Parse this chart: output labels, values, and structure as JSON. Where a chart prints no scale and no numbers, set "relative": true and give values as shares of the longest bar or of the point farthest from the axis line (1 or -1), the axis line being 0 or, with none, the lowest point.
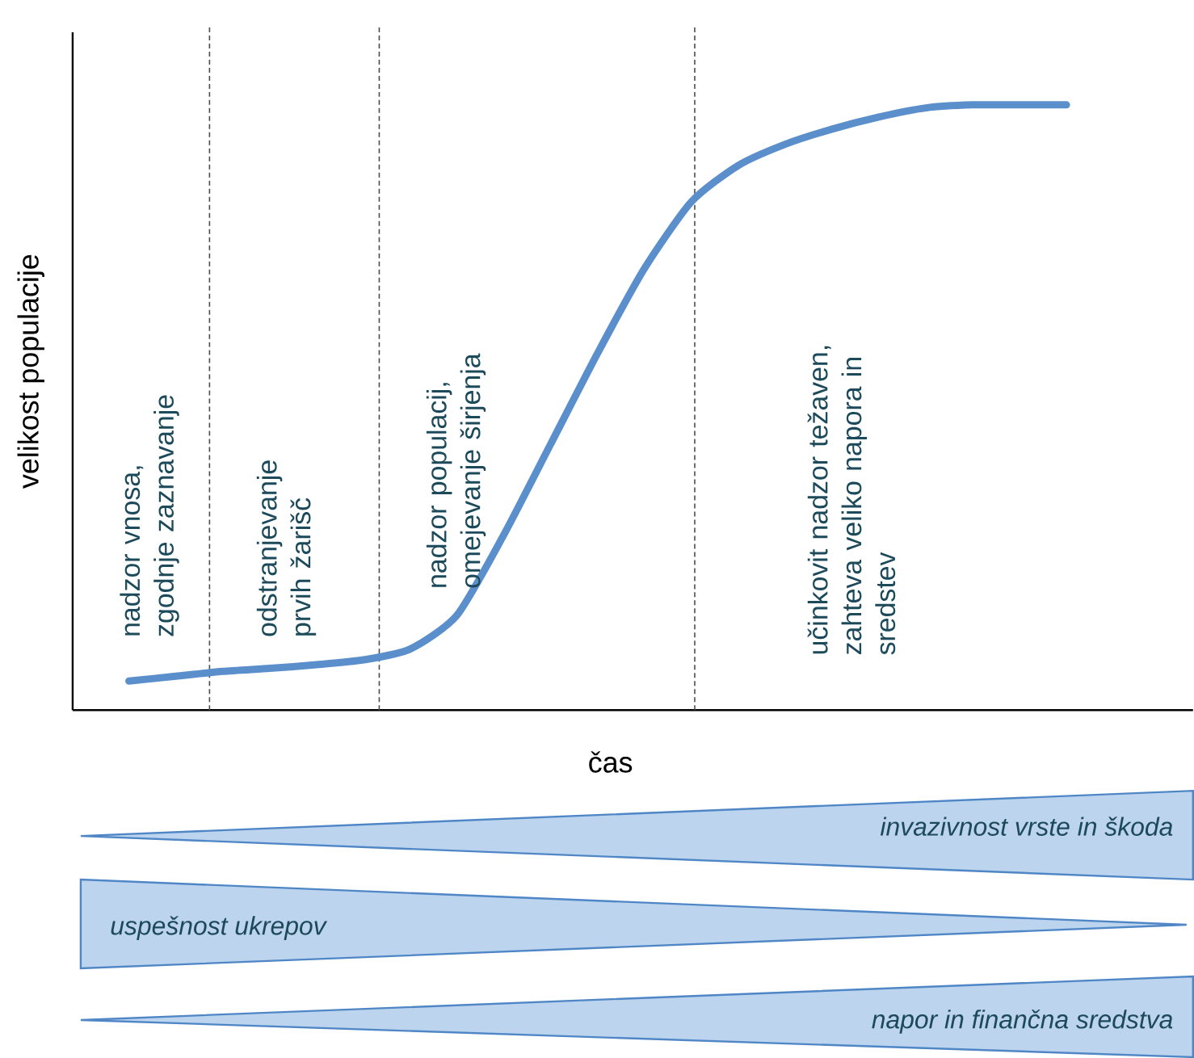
{
  "chart_data": {
    "type": "line",
    "relative": true,
    "xlabel": "čas",
    "ylabel": "velikost populacije",
    "color": "#5b8fcc",
    "categories": [
      null,
      null,
      null,
      null,
      null,
      null,
      null,
      null,
      null,
      null,
      null,
      null,
      null,
      null,
      null,
      null,
      null,
      null,
      null,
      null,
      null
    ],
    "values": [
      0.048,
      0.056,
      0.064,
      0.069,
      0.075,
      0.083,
      0.101,
      0.157,
      0.29,
      0.44,
      0.59,
      0.73,
      0.84,
      0.9,
      0.935,
      0.96,
      0.98,
      0.995,
      1,
      1,
      1
    ],
    "annotations": [
      "nadzor vnosa, zgodnje zaznavanje",
      "odstranjevanje prvih žarišč",
      "nadzor populacij, omejevanje širjenja",
      "učinkovit nadzor težaven, zahteva veliko napora in sredstev",
      "invazivnost vrste in škoda",
      "uspešnost ukrepov",
      "napor in finančna sredstva"
    ]
  }
}
